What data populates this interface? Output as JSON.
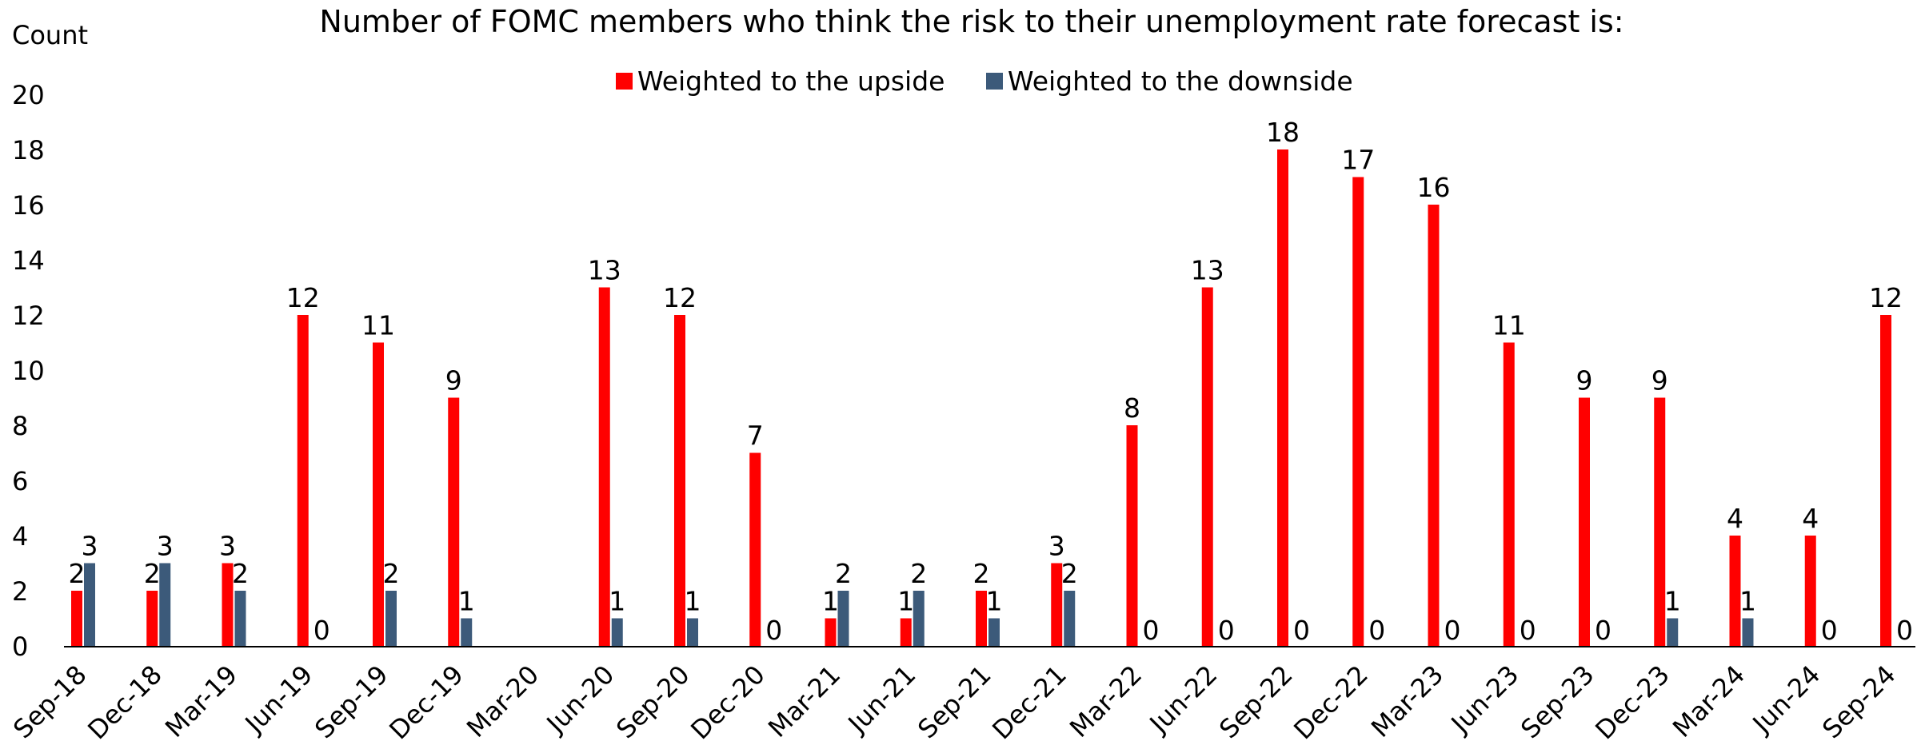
{
  "chart_data": {
    "type": "bar",
    "title": "Number of FOMC members who think the risk to their unemployment rate forecast is:",
    "ylabel": "Count",
    "xlabel": "",
    "ylim": [
      0,
      20
    ],
    "yticks": [
      0,
      2,
      4,
      6,
      8,
      10,
      12,
      14,
      16,
      18,
      20
    ],
    "grid": false,
    "legend_position": "top-center",
    "categories": [
      "Sep-18",
      "Dec-18",
      "Mar-19",
      "Jun-19",
      "Sep-19",
      "Dec-19",
      "Mar-20",
      "Jun-20",
      "Sep-20",
      "Dec-20",
      "Mar-21",
      "Jun-21",
      "Sep-21",
      "Dec-21",
      "Mar-22",
      "Jun-22",
      "Sep-22",
      "Dec-22",
      "Mar-23",
      "Jun-23",
      "Sep-23",
      "Dec-23",
      "Mar-24",
      "Jun-24",
      "Sep-24"
    ],
    "series": [
      {
        "name": "Weighted to the upside",
        "color": "#FF0000",
        "values": [
          2,
          2,
          3,
          12,
          11,
          9,
          null,
          13,
          12,
          7,
          1,
          1,
          2,
          3,
          8,
          13,
          18,
          17,
          16,
          11,
          9,
          9,
          4,
          4,
          12
        ],
        "labels": [
          "2",
          "2",
          "3",
          "12",
          "11",
          "9",
          "",
          "13",
          "12",
          "7",
          "1",
          "1",
          "2",
          "3",
          "8",
          "13",
          "18",
          "17",
          "16",
          "11",
          "9",
          "9",
          "4",
          "4",
          "12"
        ]
      },
      {
        "name": "Weighted to the downside",
        "color": "#3C5A7A",
        "values": [
          3,
          3,
          2,
          0,
          2,
          1,
          null,
          1,
          1,
          0,
          2,
          2,
          1,
          2,
          0,
          0,
          0,
          0,
          0,
          0,
          0,
          1,
          1,
          0,
          0
        ],
        "labels": [
          "3",
          "3",
          "2",
          "0",
          "2",
          "1",
          "",
          "1",
          "1",
          "0",
          "2",
          "2",
          "1",
          "2",
          "0",
          "0",
          "0",
          "0",
          "0",
          "0",
          "0",
          "1",
          "1",
          "0",
          "0"
        ]
      }
    ]
  }
}
